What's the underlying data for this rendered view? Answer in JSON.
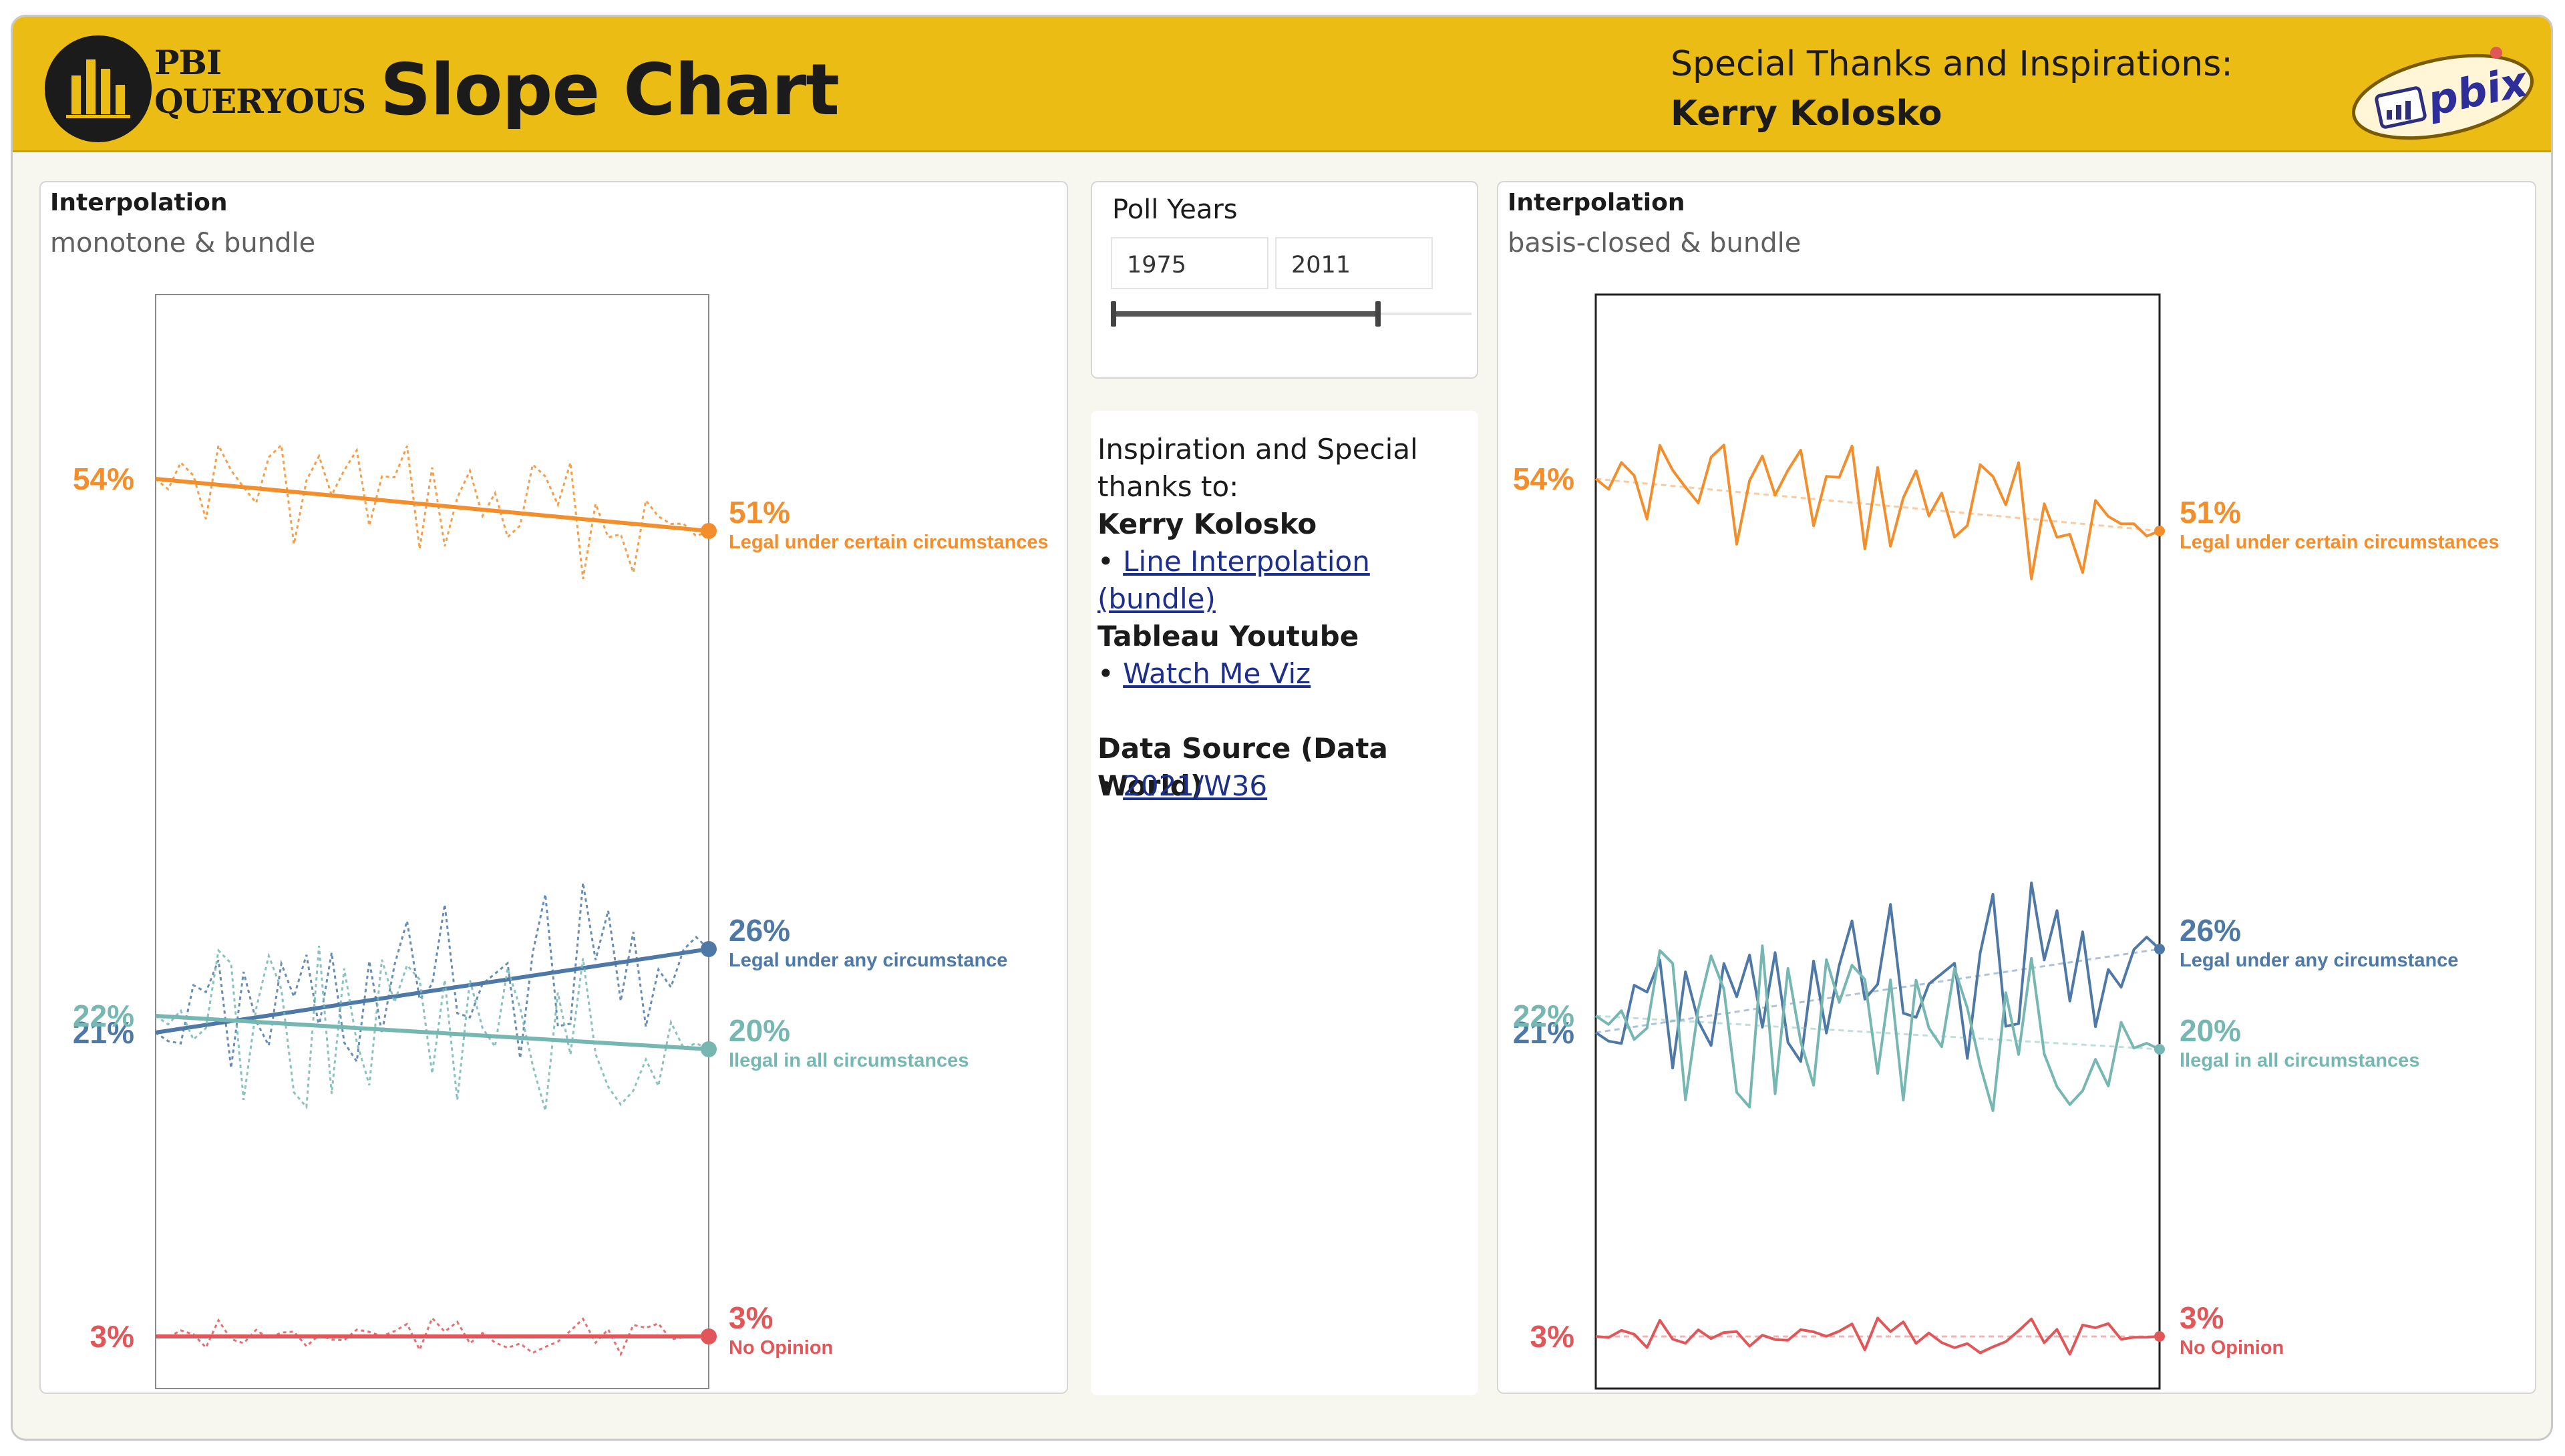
{
  "header": {
    "brand_line1": "PBI",
    "brand_line2": "QUERYOUS",
    "title": "Slope Chart",
    "thanks_label": "Special Thanks and Inspirations:",
    "thanks_name": "Kerry Kolosko",
    "badge_text": "pbix",
    "colors": {
      "bar": "#ebbc13",
      "dark": "#1b1b1b"
    }
  },
  "left_panel": {
    "title": "Interpolation",
    "subtitle": "monotone & bundle"
  },
  "right_panel": {
    "title": "Interpolation",
    "subtitle": "basis-closed & bundle"
  },
  "slicer": {
    "title": "Poll Years",
    "start": "1975",
    "end": "2011",
    "range_fraction": [
      0,
      0.74
    ]
  },
  "info": {
    "intro": "Inspiration and Special thanks to:",
    "name": "Kerry Kolosko",
    "link1": "Line Interpolation (bundle)",
    "section2": "Tableau Youtube",
    "link2": "Watch Me Viz",
    "section3": "Data Source (Data World)",
    "link3": "2021/W36",
    "bullet": "•"
  },
  "chart_data": [
    {
      "type": "line",
      "interpolation": "monotone & bundle",
      "x": [
        "1975",
        "2011"
      ],
      "ylim": [
        0,
        60
      ],
      "series": [
        {
          "name": "Legal under certain circumstances",
          "start": 54,
          "end": 51,
          "start_label": "54%",
          "end_label": "51%",
          "color": "#f28e2b"
        },
        {
          "name": "Legal under any circumstance",
          "start": 21,
          "end": 26,
          "start_label": "21%",
          "end_label": "26%",
          "color": "#4e79a7"
        },
        {
          "name": "Illegal in all circumstances",
          "start": 22,
          "end": 20,
          "start_label": "22%",
          "end_label": "20%",
          "color": "#76b7b2"
        },
        {
          "name": "No Opinion",
          "start": 3,
          "end": 3,
          "start_label": "3%",
          "end_label": "3%",
          "color": "#e15759"
        }
      ],
      "end_captions": [
        "Legal under certain circumstances",
        "Legal under any circumstance",
        "llegal in all circumstances",
        "No Opinion"
      ]
    },
    {
      "type": "line",
      "interpolation": "basis-closed & bundle",
      "x": [
        "1975",
        "2011"
      ],
      "ylim": [
        0,
        60
      ],
      "series": [
        {
          "name": "Legal under certain circumstances",
          "start": 54,
          "end": 51,
          "start_label": "54%",
          "end_label": "51%",
          "color": "#f28e2b"
        },
        {
          "name": "Legal under any circumstance",
          "start": 21,
          "end": 26,
          "start_label": "21%",
          "end_label": "26%",
          "color": "#4e79a7"
        },
        {
          "name": "Illegal in all circumstances",
          "start": 22,
          "end": 20,
          "start_label": "22%",
          "end_label": "20%",
          "color": "#76b7b2"
        },
        {
          "name": "No Opinion",
          "start": 3,
          "end": 3,
          "start_label": "3%",
          "end_label": "3%",
          "color": "#e15759"
        }
      ],
      "end_captions": [
        "Legal under certain circumstances",
        "Legal under any circumstance",
        "llegal in all circumstances",
        "No Opinion"
      ]
    }
  ]
}
